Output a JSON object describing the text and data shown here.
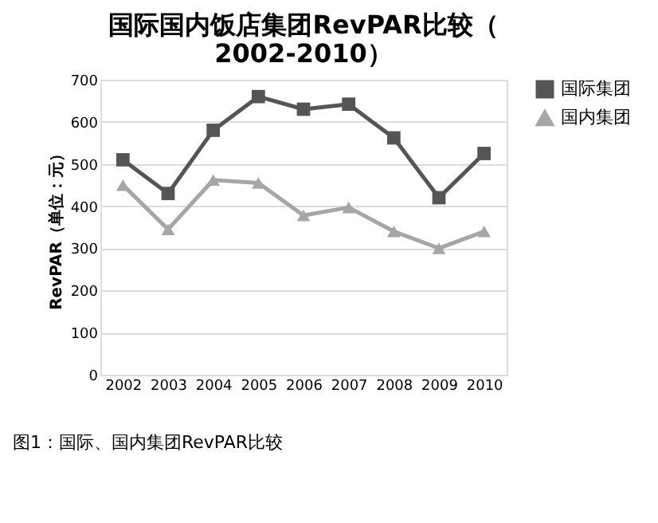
{
  "chart_data": {
    "type": "line",
    "title": "国际国内饭店集团RevPAR比较（\n2002-2010）",
    "ylabel": "RevPAR（单位：元）",
    "categories": [
      "2002",
      "2003",
      "2004",
      "2005",
      "2006",
      "2007",
      "2008",
      "2009",
      "2010"
    ],
    "series": [
      {
        "name": "国际集团",
        "color": "#555555",
        "marker": "square",
        "values": [
          510,
          430,
          580,
          660,
          630,
          642,
          562,
          420,
          525
        ]
      },
      {
        "name": "国内集团",
        "color": "#a6a6a6",
        "marker": "triangle",
        "values": [
          450,
          345,
          462,
          455,
          378,
          397,
          340,
          300,
          340
        ]
      }
    ],
    "ylim": [
      0,
      700
    ],
    "yticks": [
      0,
      100,
      200,
      300,
      400,
      500,
      600,
      700
    ],
    "grid": "y",
    "legend": "right",
    "annotations": [
      "图1：国际、国内集团RevPAR比较"
    ]
  }
}
